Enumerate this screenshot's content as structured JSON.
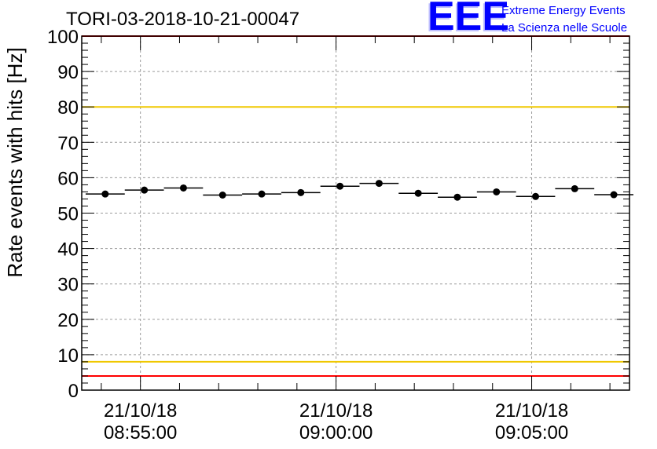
{
  "chart_data": {
    "type": "scatter",
    "title": "TORI-03-2018-10-21-00047",
    "ylabel": "Rate events with hits [Hz]",
    "xlabel": "",
    "ylim": [
      0,
      100
    ],
    "grid": true,
    "yticks": [
      0,
      10,
      20,
      30,
      40,
      50,
      60,
      70,
      80,
      90,
      100
    ],
    "xtick_labels": [
      {
        "date": "21/10/18",
        "time": "08:55:00",
        "minute": 5
      },
      {
        "date": "21/10/18",
        "time": "09:00:00",
        "minute": 10
      },
      {
        "date": "21/10/18",
        "time": "09:05:00",
        "minute": 15
      }
    ],
    "xrange_minutes": [
      3.5,
      17.5
    ],
    "bin_width_minutes": 1,
    "series": [
      {
        "name": "rate",
        "x_minutes": [
          4.1,
          5.1,
          6.1,
          7.1,
          8.1,
          9.1,
          10.1,
          11.1,
          12.1,
          13.1,
          14.1,
          15.1,
          16.1,
          17.1
        ],
        "values": [
          55.4,
          56.5,
          57.1,
          55.1,
          55.4,
          55.8,
          57.6,
          58.4,
          55.6,
          54.5,
          56.0,
          54.7,
          56.9,
          55.2
        ]
      }
    ],
    "reference_lines": [
      {
        "value": 80,
        "color": "#f0c800"
      },
      {
        "value": 8,
        "color": "#f0c800"
      },
      {
        "value": 4,
        "color": "#ff0000"
      },
      {
        "value": 100,
        "color": "#ff0000"
      }
    ]
  },
  "logo": {
    "mark": "EEE",
    "line1": "Extreme Energy Events",
    "line2": "La Scienza nelle Scuole",
    "color": "#0000ff"
  }
}
